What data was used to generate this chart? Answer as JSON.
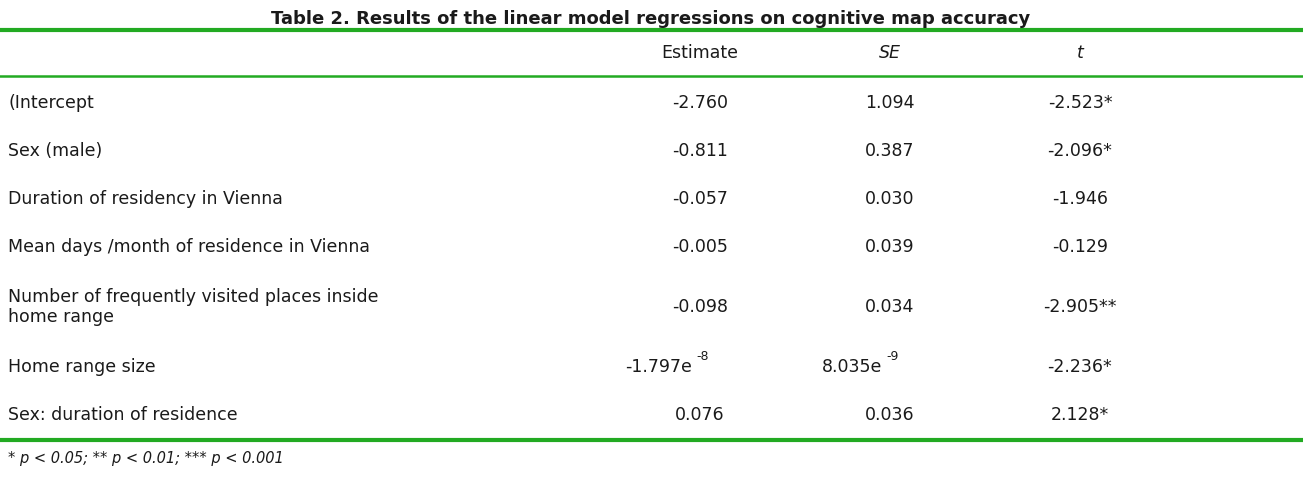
{
  "title": "Table 2. Results of the linear model regressions on cognitive map accuracy",
  "rows": [
    {
      "label": "(Intercept",
      "estimate": "-2.760",
      "se": "1.094",
      "t": "-2.523*",
      "two_line": false,
      "estimate_superscript": false
    },
    {
      "label": "Sex (male)",
      "estimate": "-0.811",
      "se": "0.387",
      "t": "-2.096*",
      "two_line": false,
      "estimate_superscript": false
    },
    {
      "label": "Duration of residency in Vienna",
      "estimate": "-0.057",
      "se": "0.030",
      "t": "-1.946",
      "two_line": false,
      "estimate_superscript": false
    },
    {
      "label": "Mean days /month of residence in Vienna",
      "estimate": "-0.005",
      "se": "0.039",
      "t": "-0.129",
      "two_line": false,
      "estimate_superscript": false
    },
    {
      "label": "Number of frequently visited places inside\nhome range",
      "estimate": "-0.098",
      "se": "0.034",
      "t": "-2.905**",
      "two_line": true,
      "estimate_superscript": false
    },
    {
      "label": "Home range size",
      "estimate": "-1.797e",
      "estimate_sup": "-8",
      "se": "8.035e",
      "se_sup": "-9",
      "t": "-2.236*",
      "two_line": false,
      "estimate_superscript": true
    },
    {
      "label": "Sex: duration of residence",
      "estimate": "0.076",
      "se": "0.036",
      "t": "2.128*",
      "two_line": false,
      "estimate_superscript": false
    }
  ],
  "footnote": "* p < 0.05; ** p < 0.01; *** p < 0.001",
  "border_color": "#22aa22",
  "text_color": "#1a1a1a",
  "bg_color": "#ffffff",
  "font_size": 12.5,
  "title_font_size": 13.0,
  "footnote_font_size": 10.5
}
